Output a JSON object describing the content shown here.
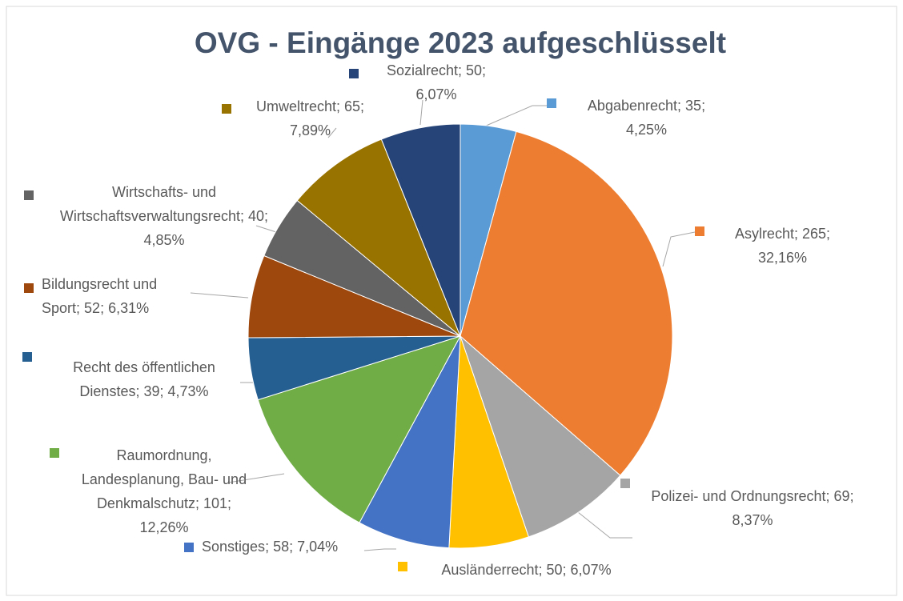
{
  "chart_data": {
    "type": "pie",
    "title": "OVG - Eingänge 2023 aufgeschlüsselt",
    "categories": [
      "Abgabenrecht",
      "Asylrecht",
      "Polizei- und Ordnungsrecht",
      "Ausländerrecht",
      "Sonstiges",
      "Raumordnung, Landesplanung, Bau- und Denkmalschutz",
      "Recht des öffentlichen Dienstes",
      "Bildungsrecht und Sport",
      "Wirtschafts- und Wirtschaftsverwaltungsrecht",
      "Umweltrecht",
      "Sozialrecht"
    ],
    "values": [
      35,
      265,
      69,
      50,
      58,
      101,
      39,
      52,
      40,
      65,
      50
    ],
    "percent_labels": [
      "4,25%",
      "32,16%",
      "8,37%",
      "6,07%",
      "7,04%",
      "12,26%",
      "4,73%",
      "6,31%",
      "4,85%",
      "7,89%",
      "6,07%"
    ],
    "colors": [
      "#5b9bd5",
      "#ed7d31",
      "#a5a5a5",
      "#ffc000",
      "#4472c4",
      "#70ad47",
      "#255e91",
      "#9e480e",
      "#636363",
      "#997300",
      "#264478"
    ]
  }
}
